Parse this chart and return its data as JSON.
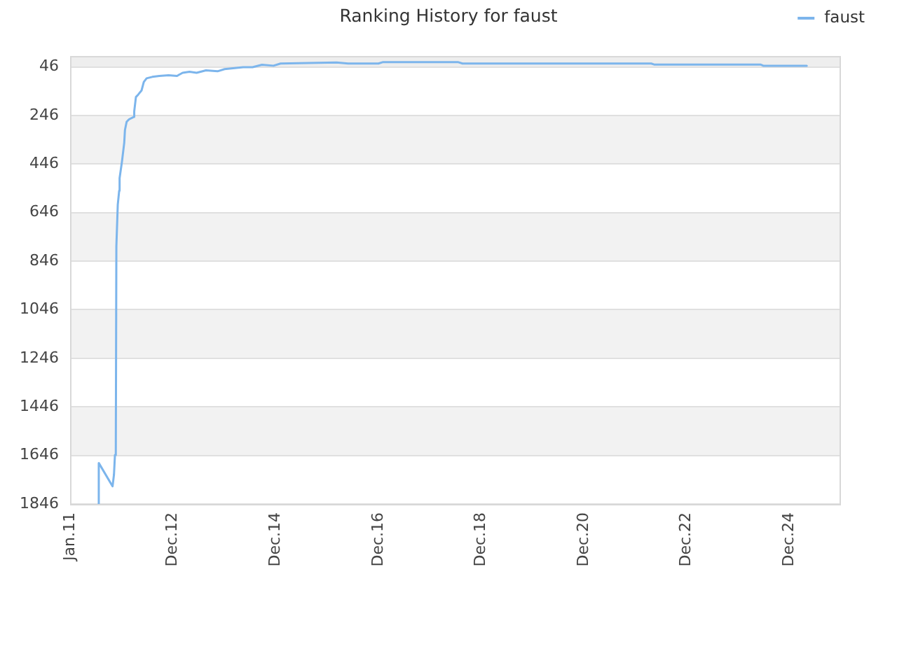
{
  "chart_data": {
    "type": "line",
    "title": "Ranking History for faust",
    "x": [
      "2011-07-23",
      "2011-07-24",
      "2011-10-30",
      "2011-11-09",
      "2011-11-16",
      "2011-11-22",
      "2011-11-26",
      "2011-12-06",
      "2011-12-16",
      "2011-12-19",
      "2012-01-05",
      "2012-01-21",
      "2012-01-26",
      "2012-02-07",
      "2012-02-24",
      "2012-03-28",
      "2012-04-01",
      "2012-04-13",
      "2012-04-29",
      "2012-05-23",
      "2012-06-08",
      "2012-06-28",
      "2012-08-07",
      "2012-09-26",
      "2012-12-01",
      "2013-01-30",
      "2013-03-11",
      "2013-04-29",
      "2013-06-18",
      "2013-08-24",
      "2013-11-14",
      "2014-01-03",
      "2014-05-15",
      "2014-07-21",
      "2014-09-26",
      "2014-12-17",
      "2015-02-05",
      "2016-03-09",
      "2016-05-30",
      "2017-01-01",
      "2017-02-03",
      "2018-07-19",
      "2018-08-21",
      "2022-04-24",
      "2022-05-14",
      "2024-06-08",
      "2024-06-28",
      "2025-05-03"
    ],
    "series": [
      {
        "name": "faust",
        "color": "#7cb5ec",
        "values": [
          1846,
          1677,
          1773,
          1725,
          1644,
          1640,
          785,
          613,
          556,
          504,
          435,
          358,
          306,
          272,
          262,
          252,
          229,
          170,
          160,
          143,
          108,
          93,
          87,
          83,
          80,
          83,
          70,
          66,
          70,
          60,
          64,
          55,
          47,
          47,
          37,
          41,
          32,
          28,
          32,
          32,
          26,
          26,
          32,
          32,
          36,
          36,
          41,
          41
        ]
      }
    ],
    "xlim": [
      "2011-01-01",
      "2026-01-01"
    ],
    "xticks": [
      {
        "value": "2011-01-01",
        "label": "Jan.11"
      },
      {
        "value": "2012-12-31",
        "label": "Dec.12"
      },
      {
        "value": "2014-12-31",
        "label": "Dec.14"
      },
      {
        "value": "2016-12-31",
        "label": "Dec.16"
      },
      {
        "value": "2018-12-31",
        "label": "Dec.18"
      },
      {
        "value": "2020-12-31",
        "label": "Dec.20"
      },
      {
        "value": "2022-12-31",
        "label": "Dec.22"
      },
      {
        "value": "2024-12-31",
        "label": "Dec.24"
      }
    ],
    "ylim": [
      1846,
      1
    ],
    "yticks": [
      46,
      246,
      446,
      646,
      846,
      1046,
      1246,
      1446,
      1646,
      1846
    ],
    "grid": "y",
    "legend": "top right",
    "bands": [
      {
        "axis": "y",
        "from": 1,
        "to": 46,
        "color": "#eeeeee"
      },
      {
        "axis": "y",
        "from": 246,
        "to": 446,
        "color": "#f2f2f2"
      },
      {
        "axis": "y",
        "from": 646,
        "to": 846,
        "color": "#f2f2f2"
      },
      {
        "axis": "y",
        "from": 1046,
        "to": 1246,
        "color": "#f2f2f2"
      },
      {
        "axis": "y",
        "from": 1446,
        "to": 1646,
        "color": "#f2f2f2"
      }
    ]
  }
}
